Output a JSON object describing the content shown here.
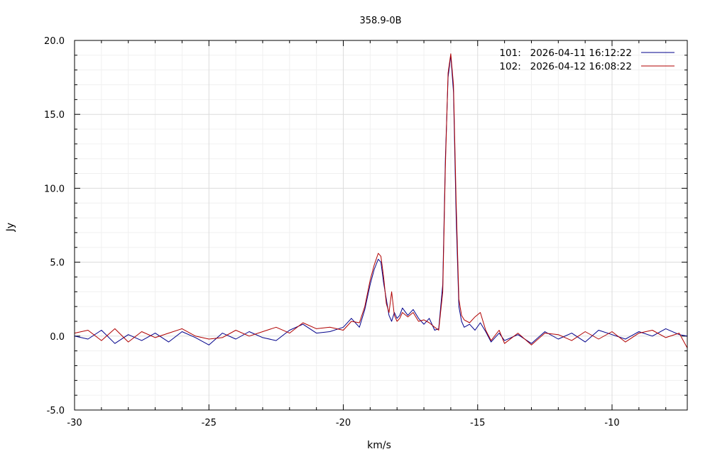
{
  "chart_data": {
    "type": "line",
    "title": "358.9-0B",
    "xlabel": "km/s",
    "ylabel": "Jy",
    "xlim": [
      -30,
      -7.2
    ],
    "ylim": [
      -5,
      20
    ],
    "x_ticks": [
      -30,
      -25,
      -20,
      -15,
      -10
    ],
    "x_tick_labels": [
      "-30",
      "-25",
      "-20",
      "-15",
      "-10"
    ],
    "y_ticks": [
      -5,
      0,
      5,
      10,
      15,
      20
    ],
    "y_tick_labels": [
      "-5.0",
      "0.0",
      "5.0",
      "10.0",
      "15.0",
      "20.0"
    ],
    "grid": true,
    "legend_position": "top-right",
    "series": [
      {
        "name": "101:   2026-04-11 16:12:22",
        "color": "#00008b",
        "x": [
          -30,
          -29.5,
          -29,
          -28.5,
          -28,
          -27.5,
          -27,
          -26.5,
          -26,
          -25.5,
          -25,
          -24.5,
          -24,
          -23.5,
          -23,
          -22.5,
          -22,
          -21.5,
          -21,
          -20.5,
          -20,
          -19.7,
          -19.4,
          -19.2,
          -19.0,
          -18.85,
          -18.7,
          -18.6,
          -18.5,
          -18.4,
          -18.3,
          -18.2,
          -18.1,
          -18.0,
          -17.9,
          -17.8,
          -17.6,
          -17.4,
          -17.2,
          -17.0,
          -16.8,
          -16.6,
          -16.45,
          -16.3,
          -16.2,
          -16.1,
          -16.0,
          -15.9,
          -15.8,
          -15.7,
          -15.6,
          -15.5,
          -15.3,
          -15.1,
          -14.9,
          -14.7,
          -14.5,
          -14.2,
          -14.0,
          -13.5,
          -13.0,
          -12.5,
          -12.0,
          -11.5,
          -11.0,
          -10.5,
          -10.0,
          -9.5,
          -9.0,
          -8.5,
          -8.0,
          -7.5,
          -7.2
        ],
        "values": [
          0.0,
          -0.2,
          0.4,
          -0.5,
          0.1,
          -0.3,
          0.2,
          -0.4,
          0.3,
          -0.1,
          -0.6,
          0.2,
          -0.2,
          0.3,
          -0.1,
          -0.3,
          0.4,
          0.8,
          0.2,
          0.3,
          0.6,
          1.2,
          0.6,
          1.8,
          3.5,
          4.5,
          5.2,
          5.0,
          3.6,
          2.5,
          1.4,
          1.0,
          1.6,
          1.2,
          1.4,
          1.9,
          1.4,
          1.8,
          1.2,
          0.8,
          1.2,
          0.4,
          0.5,
          3.5,
          12.0,
          17.5,
          19.0,
          16.5,
          8.0,
          2.0,
          1.0,
          0.6,
          0.8,
          0.4,
          0.9,
          0.3,
          -0.4,
          0.2,
          -0.3,
          0.1,
          -0.5,
          0.3,
          -0.2,
          0.2,
          -0.4,
          0.4,
          0.1,
          -0.2,
          0.3,
          0.0,
          0.5,
          0.1,
          0.0
        ]
      },
      {
        "name": "102:   2026-04-12 16:08:22",
        "color": "#b00000",
        "x": [
          -30,
          -29.5,
          -29,
          -28.5,
          -28,
          -27.5,
          -27,
          -26.5,
          -26,
          -25.5,
          -25,
          -24.5,
          -24,
          -23.5,
          -23,
          -22.5,
          -22,
          -21.5,
          -21,
          -20.5,
          -20,
          -19.7,
          -19.4,
          -19.2,
          -19.0,
          -18.85,
          -18.7,
          -18.6,
          -18.5,
          -18.4,
          -18.3,
          -18.2,
          -18.1,
          -18.0,
          -17.9,
          -17.8,
          -17.6,
          -17.4,
          -17.2,
          -17.0,
          -16.8,
          -16.6,
          -16.45,
          -16.3,
          -16.2,
          -16.1,
          -16.0,
          -15.9,
          -15.8,
          -15.7,
          -15.6,
          -15.5,
          -15.3,
          -15.1,
          -14.9,
          -14.7,
          -14.5,
          -14.2,
          -14.0,
          -13.5,
          -13.0,
          -12.5,
          -12.0,
          -11.5,
          -11.0,
          -10.5,
          -10.0,
          -9.5,
          -9.0,
          -8.5,
          -8.0,
          -7.5,
          -7.2
        ],
        "values": [
          0.2,
          0.4,
          -0.3,
          0.5,
          -0.4,
          0.3,
          -0.1,
          0.2,
          0.5,
          0.0,
          -0.2,
          -0.1,
          0.4,
          0.0,
          0.3,
          0.6,
          0.2,
          0.9,
          0.5,
          0.6,
          0.4,
          1.0,
          0.9,
          2.0,
          3.8,
          4.8,
          5.6,
          5.4,
          4.0,
          2.2,
          1.6,
          3.0,
          1.4,
          1.0,
          1.2,
          1.6,
          1.3,
          1.6,
          1.0,
          1.1,
          0.9,
          0.6,
          0.4,
          3.0,
          11.5,
          17.8,
          19.1,
          17.0,
          9.0,
          2.5,
          1.4,
          1.1,
          0.9,
          1.3,
          1.6,
          0.4,
          -0.3,
          0.4,
          -0.5,
          0.2,
          -0.6,
          0.2,
          0.1,
          -0.3,
          0.3,
          -0.2,
          0.3,
          -0.4,
          0.2,
          0.4,
          -0.1,
          0.2,
          -0.8
        ]
      }
    ]
  }
}
